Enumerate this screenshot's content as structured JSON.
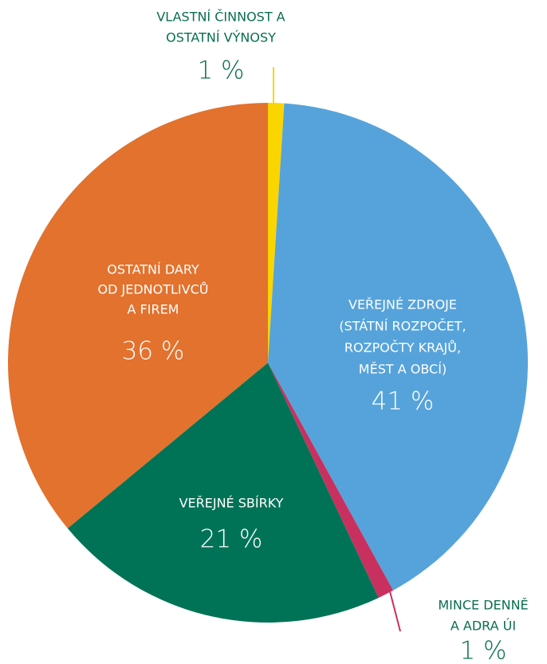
{
  "chart_data": {
    "type": "pie",
    "categories": [
      [
        "VLASTNÍ ČINNOST A",
        "OSTATNÍ VÝNOSY"
      ],
      [
        "VEŘEJNÉ ZDROJE",
        "(STÁTNÍ ROZPOČET,",
        "ROZPOČTY KRAJŮ,",
        "MĚST A OBCÍ)"
      ],
      [
        "MINCE DENNĚ",
        "A ADRA ÚI"
      ],
      [
        "VEŘEJNÉ SBÍRKY"
      ],
      [
        "OSTATNÍ DARY",
        "OD JEDNOTLIVCŮ",
        "A FIREM"
      ]
    ],
    "values": [
      1,
      41,
      1,
      21,
      36
    ],
    "value_labels": [
      "1 %",
      "41 %",
      "1 %",
      "21 %",
      "36 %"
    ],
    "colors": [
      "#fbd500",
      "#56a3db",
      "#c8315f",
      "#007356",
      "#e2722e"
    ]
  }
}
